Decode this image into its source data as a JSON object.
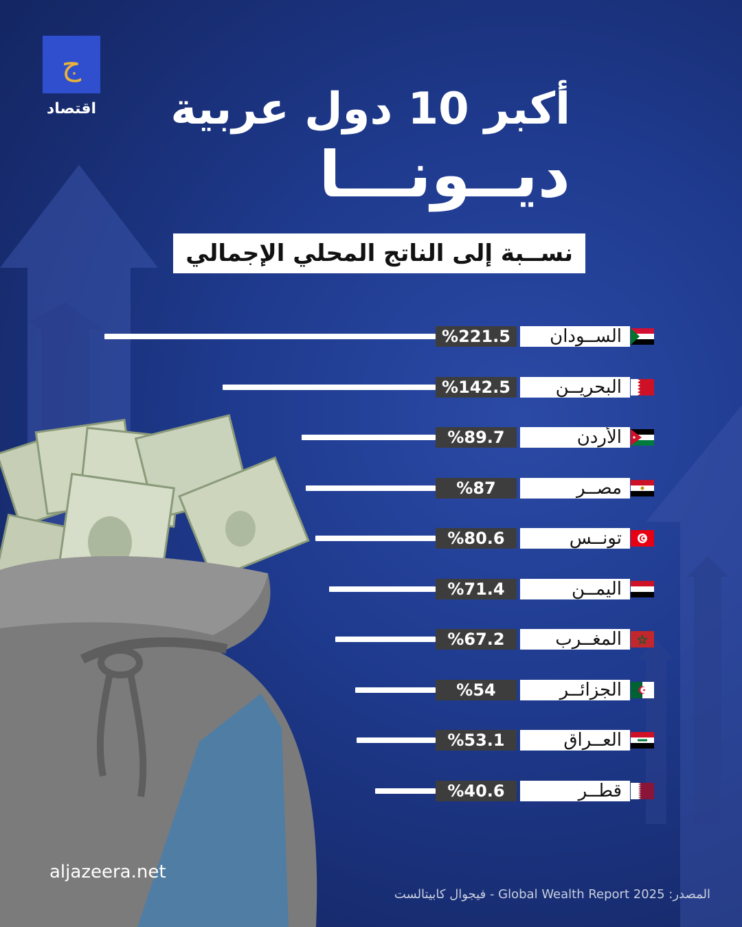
{
  "brand": {
    "logo_label": "اقتصاد",
    "domain_text": "aljazeera.net"
  },
  "title": {
    "line1": "أكبر 10 دول عربية",
    "line2": "ديــونـــا"
  },
  "subtitle": "نســبة إلى الناتج المحلي الإجمالي",
  "source": "المصدر: Global Wealth Report 2025 - فيجوال كابيتالست",
  "colors": {
    "background": "#1f3b8f",
    "bar": "#ffffff",
    "value_box": "#3d3d3d",
    "name_box": "#ffffff"
  },
  "chart_data": {
    "type": "bar",
    "orientation": "horizontal",
    "title": "أكبر 10 دول عربية ديونا",
    "subtitle": "نسبة إلى الناتج المحلي الإجمالي",
    "categories": [
      "السودان",
      "البحرين",
      "الأردن",
      "مصر",
      "تونس",
      "اليمن",
      "المغرب",
      "الجزائر",
      "العراق",
      "قطر"
    ],
    "labels": [
      "الســودان",
      "البحريــن",
      "الأردن",
      "مصــر",
      "تونــس",
      "اليمــن",
      "المغــرب",
      "الجزائــر",
      "العــراق",
      "قطــر"
    ],
    "values": [
      221.5,
      142.5,
      89.7,
      87,
      80.6,
      71.4,
      67.2,
      54,
      53.1,
      40.6
    ],
    "value_labels": [
      "%221.5",
      "%142.5",
      "%89.7",
      "%87",
      "%80.6",
      "%71.4",
      "%67.2",
      "%54",
      "%53.1",
      "%40.6"
    ],
    "flags": [
      "sudan",
      "bahrain",
      "jordan",
      "egypt",
      "tunisia",
      "yemen",
      "morocco",
      "algeria",
      "iraq",
      "qatar"
    ],
    "unit": "%"
  }
}
